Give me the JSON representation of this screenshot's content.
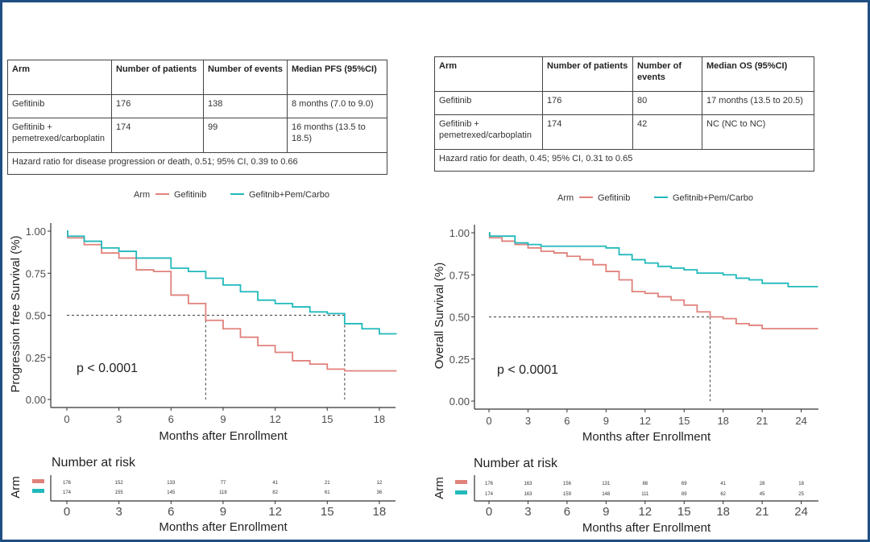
{
  "colors": {
    "gefitinib": "#e0827c",
    "combo": "#21b9bb",
    "frame": "#1f4e82",
    "axis": "#333333",
    "reference": "#555555"
  },
  "pfs_table": {
    "headers": [
      "Arm",
      "Number of patients",
      "Number of events",
      "Median PFS (95%CI)"
    ],
    "rows": [
      [
        "Gefitinib",
        "176",
        "138",
        "8 months (7.0 to 9.0)"
      ],
      [
        "Gefitinib + pemetrexed/carboplatin",
        "174",
        "99",
        "16 months (13.5 to 18.5)"
      ]
    ],
    "footer": "Hazard ratio for disease progression or death, 0.51; 95% CI, 0.39 to 0.66"
  },
  "os_table": {
    "headers": [
      "Arm",
      "Number of patients",
      "Number of events",
      "Median OS (95%CI)"
    ],
    "rows": [
      [
        "Gefitinib",
        "176",
        "80",
        "17 months (13.5 to 20.5)"
      ],
      [
        "Gefitinib + pemetrexed/carboplatin",
        "174",
        "42",
        "NC (NC to NC)"
      ]
    ],
    "footer": "Hazard ratio for death, 0.45; 95% CI, 0.31 to 0.65"
  },
  "chart_data": [
    {
      "type": "line",
      "subtype": "kaplan-meier-step",
      "title": "",
      "xlabel": "Months after Enrollment",
      "ylabel": "Progression free Survival (%)",
      "xlim": [
        0,
        19
      ],
      "ylim": [
        0,
        1
      ],
      "xticks": [
        0,
        3,
        6,
        9,
        12,
        15,
        18
      ],
      "yticks": [
        "0.00",
        "0.25",
        "0.50",
        "0.75",
        "1.00"
      ],
      "legend": {
        "title": "Arm",
        "position": "top",
        "entries": [
          "Gefitinib",
          "Gefitnib+Pem/Carbo"
        ]
      },
      "annotation": "p < 0.0001",
      "median_reference": {
        "y": 0.5,
        "x": [
          8,
          16
        ]
      },
      "series": [
        {
          "name": "Gefitinib",
          "steps": [
            [
              0,
              1.0
            ],
            [
              0.05,
              0.96
            ],
            [
              1,
              0.92
            ],
            [
              2,
              0.87
            ],
            [
              3,
              0.84
            ],
            [
              4,
              0.77
            ],
            [
              5,
              0.76
            ],
            [
              6,
              0.62
            ],
            [
              7,
              0.57
            ],
            [
              8,
              0.47
            ],
            [
              9,
              0.42
            ],
            [
              10,
              0.37
            ],
            [
              11,
              0.32
            ],
            [
              12,
              0.28
            ],
            [
              13,
              0.23
            ],
            [
              14,
              0.21
            ],
            [
              15,
              0.18
            ],
            [
              16,
              0.17
            ],
            [
              19,
              0.17
            ]
          ]
        },
        {
          "name": "Gefitnib+Pem/Carbo",
          "steps": [
            [
              0,
              1.0
            ],
            [
              0.05,
              0.97
            ],
            [
              1,
              0.94
            ],
            [
              2,
              0.9
            ],
            [
              3,
              0.88
            ],
            [
              4,
              0.84
            ],
            [
              5,
              0.84
            ],
            [
              6,
              0.78
            ],
            [
              7,
              0.76
            ],
            [
              8,
              0.72
            ],
            [
              9,
              0.68
            ],
            [
              10,
              0.64
            ],
            [
              11,
              0.59
            ],
            [
              12,
              0.57
            ],
            [
              13,
              0.55
            ],
            [
              14,
              0.52
            ],
            [
              15,
              0.51
            ],
            [
              16,
              0.45
            ],
            [
              17,
              0.42
            ],
            [
              18,
              0.39
            ],
            [
              19,
              0.39
            ]
          ]
        }
      ],
      "risk_table": {
        "title": "Number at risk",
        "row_label": "Arm",
        "times": [
          0,
          3,
          6,
          9,
          12,
          15,
          18
        ],
        "rows": [
          {
            "name": "Gefitinib",
            "values": [
              176,
              152,
              133,
              77,
              41,
              21,
              12
            ]
          },
          {
            "name": "Gefitnib+Pem/Carbo",
            "values": [
              174,
              155,
              145,
              118,
              82,
              61,
              36
            ]
          }
        ],
        "xlabel": "Months after Enrollment"
      }
    },
    {
      "type": "line",
      "subtype": "kaplan-meier-step",
      "title": "",
      "xlabel": "Months after Enrollment",
      "ylabel": "Overall Survival (%)",
      "xlim": [
        0,
        25.3
      ],
      "ylim": [
        0,
        1
      ],
      "xticks": [
        0,
        3,
        6,
        9,
        12,
        15,
        18,
        21,
        24
      ],
      "yticks": [
        "0.00",
        "0.25",
        "0.50",
        "0.75",
        "1.00"
      ],
      "legend": {
        "title": "Arm",
        "position": "top",
        "entries": [
          "Gefitinib",
          "Gefitnib+Pem/Carbo"
        ]
      },
      "annotation": "p < 0.0001",
      "median_reference": {
        "y": 0.5,
        "x": [
          17
        ]
      },
      "series": [
        {
          "name": "Gefitinib",
          "steps": [
            [
              0,
              1.0
            ],
            [
              0.05,
              0.97
            ],
            [
              1,
              0.95
            ],
            [
              2,
              0.93
            ],
            [
              3,
              0.91
            ],
            [
              4,
              0.89
            ],
            [
              5,
              0.88
            ],
            [
              6,
              0.86
            ],
            [
              7,
              0.84
            ],
            [
              8,
              0.81
            ],
            [
              9,
              0.77
            ],
            [
              10,
              0.72
            ],
            [
              11,
              0.65
            ],
            [
              12,
              0.64
            ],
            [
              13,
              0.62
            ],
            [
              14,
              0.6
            ],
            [
              15,
              0.57
            ],
            [
              16,
              0.53
            ],
            [
              17,
              0.5
            ],
            [
              18,
              0.49
            ],
            [
              19,
              0.46
            ],
            [
              20,
              0.45
            ],
            [
              21,
              0.43
            ],
            [
              25.3,
              0.43
            ]
          ]
        },
        {
          "name": "Gefitnib+Pem/Carbo",
          "steps": [
            [
              0,
              1.0
            ],
            [
              0.05,
              0.98
            ],
            [
              2,
              0.94
            ],
            [
              3,
              0.93
            ],
            [
              4,
              0.92
            ],
            [
              9,
              0.91
            ],
            [
              10,
              0.87
            ],
            [
              11,
              0.84
            ],
            [
              12,
              0.82
            ],
            [
              13,
              0.8
            ],
            [
              14,
              0.79
            ],
            [
              15,
              0.78
            ],
            [
              16,
              0.76
            ],
            [
              18,
              0.75
            ],
            [
              19,
              0.73
            ],
            [
              20,
              0.72
            ],
            [
              21,
              0.7
            ],
            [
              23,
              0.68
            ],
            [
              25.3,
              0.68
            ]
          ]
        }
      ],
      "risk_table": {
        "title": "Number at risk",
        "row_label": "Arm",
        "times": [
          0,
          3,
          6,
          9,
          12,
          15,
          18,
          21,
          24
        ],
        "rows": [
          {
            "name": "Gefitinib",
            "values": [
              176,
              163,
              156,
              131,
              88,
              69,
              41,
              28,
              18
            ]
          },
          {
            "name": "Gefitnib+Pem/Carbo",
            "values": [
              174,
              163,
              159,
              148,
              111,
              89,
              62,
              45,
              25
            ]
          }
        ],
        "xlabel": "Months after Enrollment"
      }
    }
  ]
}
